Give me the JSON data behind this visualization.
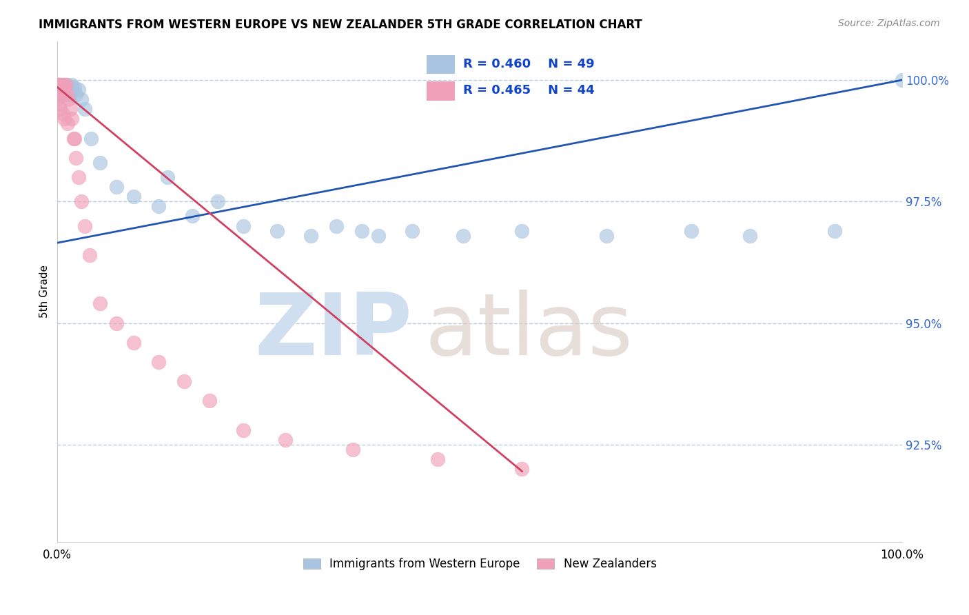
{
  "title": "IMMIGRANTS FROM WESTERN EUROPE VS NEW ZEALANDER 5TH GRADE CORRELATION CHART",
  "source": "Source: ZipAtlas.com",
  "ylabel": "5th Grade",
  "xlim": [
    0.0,
    1.0
  ],
  "ylim": [
    0.905,
    1.008
  ],
  "yticks": [
    0.925,
    0.95,
    0.975,
    1.0
  ],
  "ytick_labels": [
    "92.5%",
    "95.0%",
    "97.5%",
    "100.0%"
  ],
  "xticks": [
    0.0,
    0.25,
    0.5,
    0.75,
    1.0
  ],
  "xtick_labels": [
    "0.0%",
    "",
    "",
    "",
    "100.0%"
  ],
  "legend_blue_R": "0.460",
  "legend_blue_N": "49",
  "legend_pink_R": "0.465",
  "legend_pink_N": "44",
  "blue_color": "#a8c4e0",
  "pink_color": "#f0a0b8",
  "trendline_blue": "#2255b0",
  "trendline_pink": "#d04060",
  "background_color": "#ffffff",
  "grid_color": "#b8cce0",
  "watermark_zip_color": "#d0dff0",
  "watermark_atlas_color": "#d8c8c0",
  "blue_scatter_x": [
    0.0,
    0.001,
    0.002,
    0.003,
    0.003,
    0.004,
    0.005,
    0.005,
    0.006,
    0.006,
    0.007,
    0.008,
    0.009,
    0.01,
    0.01,
    0.011,
    0.012,
    0.013,
    0.015,
    0.016,
    0.017,
    0.018,
    0.02,
    0.022,
    0.025,
    0.028,
    0.032,
    0.04,
    0.05,
    0.07,
    0.09,
    0.12,
    0.16,
    0.22,
    0.26,
    0.3,
    0.33,
    0.36,
    0.38,
    0.42,
    0.48,
    0.55,
    0.65,
    0.75,
    0.82,
    0.92,
    1.0,
    0.13,
    0.19
  ],
  "blue_scatter_y": [
    0.999,
    0.999,
    0.998,
    0.9985,
    0.997,
    0.999,
    0.998,
    0.9975,
    0.997,
    0.998,
    0.9985,
    0.999,
    0.998,
    0.9985,
    0.997,
    0.999,
    0.998,
    0.9975,
    0.997,
    0.9985,
    0.999,
    0.998,
    0.9985,
    0.997,
    0.998,
    0.996,
    0.994,
    0.988,
    0.983,
    0.978,
    0.976,
    0.974,
    0.972,
    0.97,
    0.969,
    0.968,
    0.97,
    0.969,
    0.968,
    0.969,
    0.968,
    0.969,
    0.968,
    0.969,
    0.968,
    0.969,
    1.0,
    0.98,
    0.975
  ],
  "pink_scatter_x": [
    0.0,
    0.001,
    0.001,
    0.002,
    0.002,
    0.003,
    0.003,
    0.004,
    0.004,
    0.005,
    0.005,
    0.006,
    0.007,
    0.008,
    0.009,
    0.01,
    0.011,
    0.013,
    0.015,
    0.017,
    0.019,
    0.022,
    0.025,
    0.028,
    0.032,
    0.038,
    0.05,
    0.07,
    0.09,
    0.12,
    0.15,
    0.18,
    0.22,
    0.27,
    0.35,
    0.45,
    0.55,
    0.0,
    0.002,
    0.003,
    0.006,
    0.008,
    0.012,
    0.02
  ],
  "pink_scatter_y": [
    0.999,
    0.999,
    0.998,
    0.999,
    0.997,
    0.998,
    0.9975,
    0.999,
    0.998,
    0.9985,
    0.999,
    0.998,
    0.9985,
    0.999,
    0.998,
    0.999,
    0.997,
    0.996,
    0.994,
    0.992,
    0.988,
    0.984,
    0.98,
    0.975,
    0.97,
    0.964,
    0.954,
    0.95,
    0.946,
    0.942,
    0.938,
    0.934,
    0.928,
    0.926,
    0.924,
    0.922,
    0.92,
    0.996,
    0.995,
    0.994,
    0.993,
    0.992,
    0.991,
    0.988
  ],
  "blue_trend_x0": 0.0,
  "blue_trend_y0": 0.9665,
  "blue_trend_x1": 1.0,
  "blue_trend_y1": 1.0,
  "pink_trend_x0": 0.0,
  "pink_trend_y0": 0.9985,
  "pink_trend_x1": 0.55,
  "pink_trend_y1": 0.9195
}
